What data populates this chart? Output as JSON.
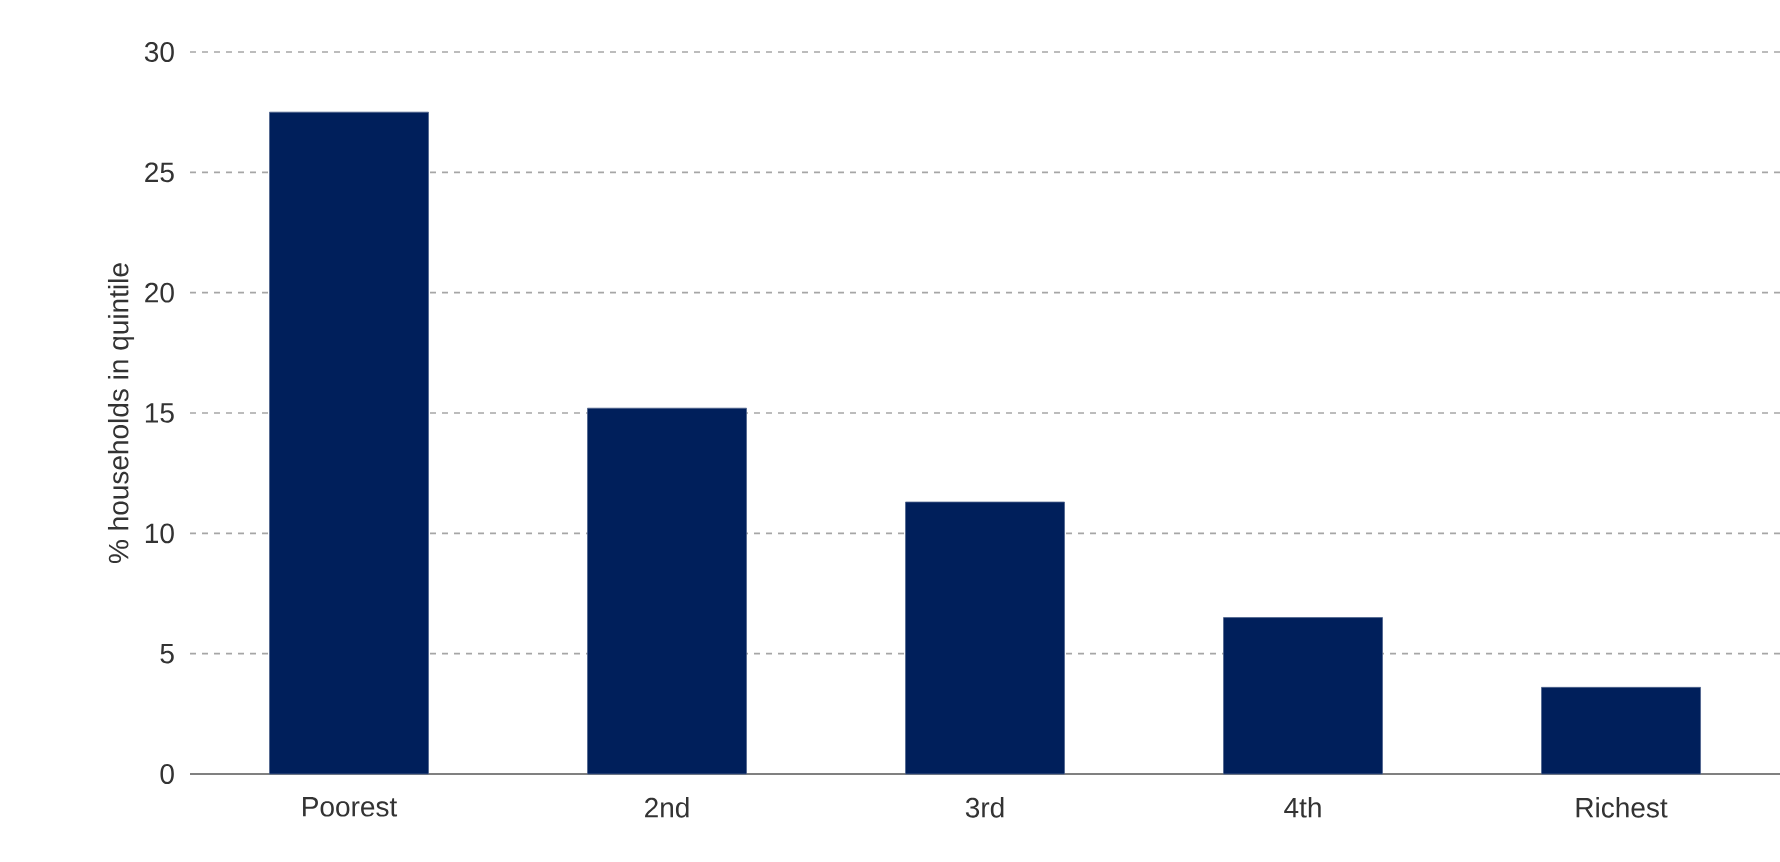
{
  "chart_data": {
    "type": "bar",
    "ylabel": "% households in quintile",
    "categories": [
      "Poorest",
      "2nd",
      "3rd",
      "4th",
      "Richest"
    ],
    "values": [
      27.5,
      15.2,
      11.3,
      6.5,
      3.6
    ],
    "color": "#001f5b",
    "ylim": [
      0,
      30
    ],
    "yticks": [
      0,
      5,
      10,
      15,
      20,
      25,
      30
    ],
    "grid": "y"
  }
}
